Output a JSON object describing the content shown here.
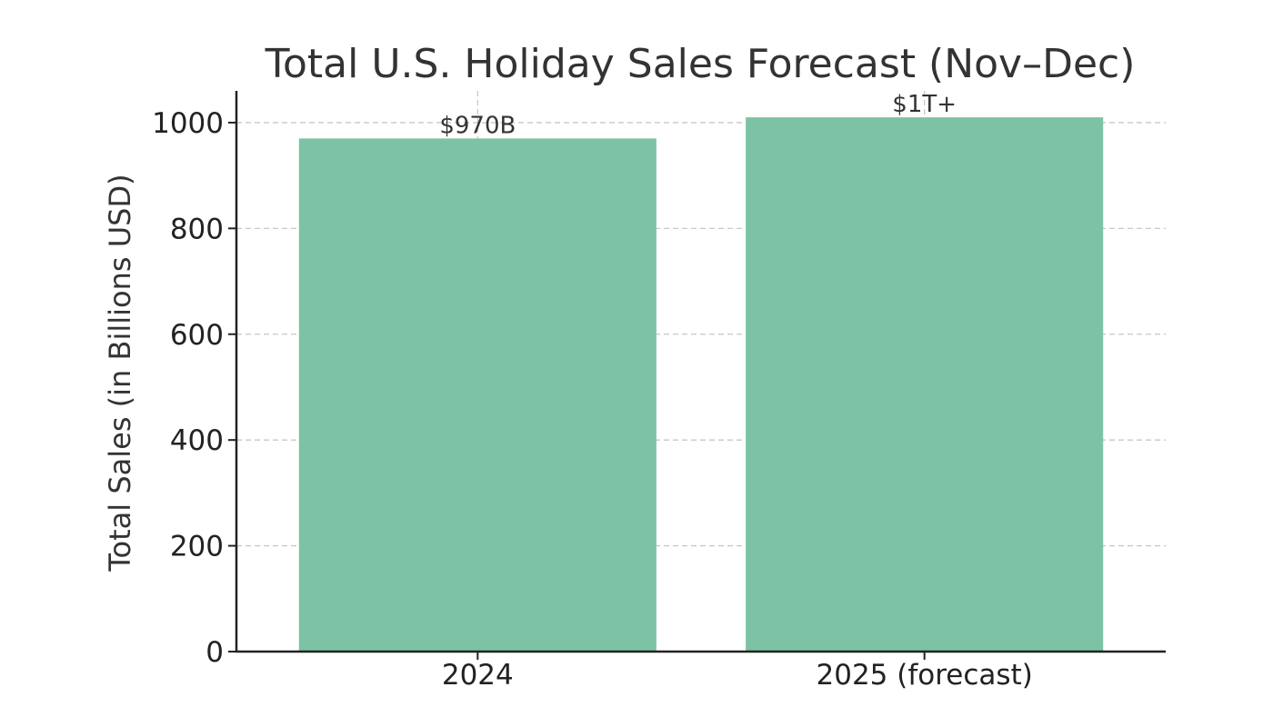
{
  "chart_data": {
    "type": "bar",
    "title": "Total U.S. Holiday Sales Forecast (Nov–Dec)",
    "xlabel": "",
    "ylabel": "Total Sales (in Billions USD)",
    "categories": [
      "2024",
      "2025 (forecast)"
    ],
    "values": [
      970,
      1010
    ],
    "data_labels": [
      "$970B",
      "$1T+"
    ],
    "yticks": [
      0,
      200,
      400,
      600,
      800,
      1000
    ],
    "ylim": [
      0,
      1060
    ],
    "grid": true,
    "bar_color": "#7dc2a5"
  }
}
